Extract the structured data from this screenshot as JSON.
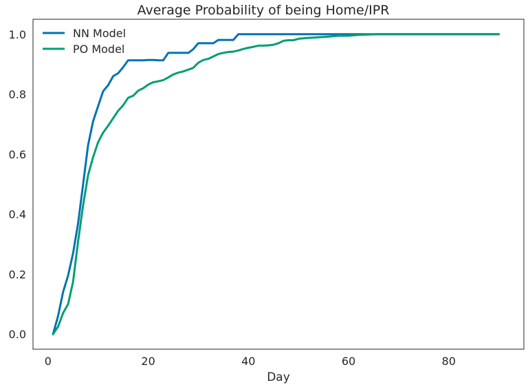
{
  "chart_data": {
    "type": "line",
    "title": "Average Probability of being Home/IPR",
    "xlabel": "Day",
    "ylabel": "",
    "xlim": [
      -3,
      95
    ],
    "ylim": [
      -0.05,
      1.05
    ],
    "xticks": [
      0,
      20,
      40,
      60,
      80
    ],
    "yticks": [
      0.0,
      0.2,
      0.4,
      0.6,
      0.8,
      1.0
    ],
    "xtick_labels": [
      "0",
      "20",
      "40",
      "60",
      "80"
    ],
    "ytick_labels": [
      "0.0",
      "0.2",
      "0.4",
      "0.6",
      "0.8",
      "1.0"
    ],
    "grid": false,
    "legend_position": "top-left",
    "series": [
      {
        "name": "NN Model",
        "color": "#0072b2",
        "x": [
          1,
          2,
          3,
          4,
          5,
          6,
          7,
          8,
          9,
          10,
          11,
          12,
          13,
          14,
          15,
          16,
          17,
          18,
          19,
          20,
          21,
          22,
          23,
          24,
          25,
          26,
          27,
          28,
          29,
          30,
          31,
          32,
          33,
          34,
          35,
          36,
          37,
          38,
          39,
          40,
          45,
          50,
          55,
          60,
          65,
          70,
          75,
          80,
          85,
          90
        ],
        "y": [
          0.0,
          0.06,
          0.14,
          0.195,
          0.27,
          0.37,
          0.5,
          0.63,
          0.71,
          0.76,
          0.81,
          0.83,
          0.86,
          0.87,
          0.89,
          0.913,
          0.913,
          0.913,
          0.913,
          0.914,
          0.914,
          0.913,
          0.913,
          0.938,
          0.938,
          0.938,
          0.938,
          0.938,
          0.95,
          0.97,
          0.97,
          0.97,
          0.97,
          0.981,
          0.981,
          0.981,
          0.981,
          1.0,
          1.0,
          1.0,
          1.0,
          1.0,
          1.0,
          1.0,
          1.0,
          1.0,
          1.0,
          1.0,
          1.0,
          1.0
        ]
      },
      {
        "name": "PO Model",
        "color": "#009e73",
        "x": [
          1,
          2,
          3,
          4,
          5,
          6,
          7,
          8,
          9,
          10,
          11,
          12,
          13,
          14,
          15,
          16,
          17,
          18,
          19,
          20,
          21,
          22,
          23,
          24,
          25,
          26,
          27,
          28,
          29,
          30,
          31,
          32,
          33,
          34,
          35,
          36,
          37,
          38,
          39,
          40,
          41,
          42,
          43,
          44,
          45,
          46,
          47,
          48,
          49,
          50,
          52,
          54,
          56,
          58,
          60,
          62,
          64,
          66,
          70,
          75,
          80,
          85,
          90
        ],
        "y": [
          0.0,
          0.025,
          0.07,
          0.1,
          0.175,
          0.31,
          0.43,
          0.53,
          0.59,
          0.64,
          0.672,
          0.695,
          0.72,
          0.745,
          0.763,
          0.788,
          0.795,
          0.812,
          0.82,
          0.832,
          0.84,
          0.843,
          0.847,
          0.856,
          0.866,
          0.872,
          0.876,
          0.882,
          0.888,
          0.905,
          0.914,
          0.918,
          0.926,
          0.934,
          0.938,
          0.941,
          0.942,
          0.946,
          0.951,
          0.955,
          0.958,
          0.962,
          0.962,
          0.963,
          0.965,
          0.97,
          0.978,
          0.98,
          0.98,
          0.985,
          0.988,
          0.99,
          0.992,
          0.995,
          0.995,
          0.998,
          0.999,
          1.0,
          1.0,
          1.0,
          1.0,
          1.0,
          1.0
        ]
      }
    ]
  }
}
